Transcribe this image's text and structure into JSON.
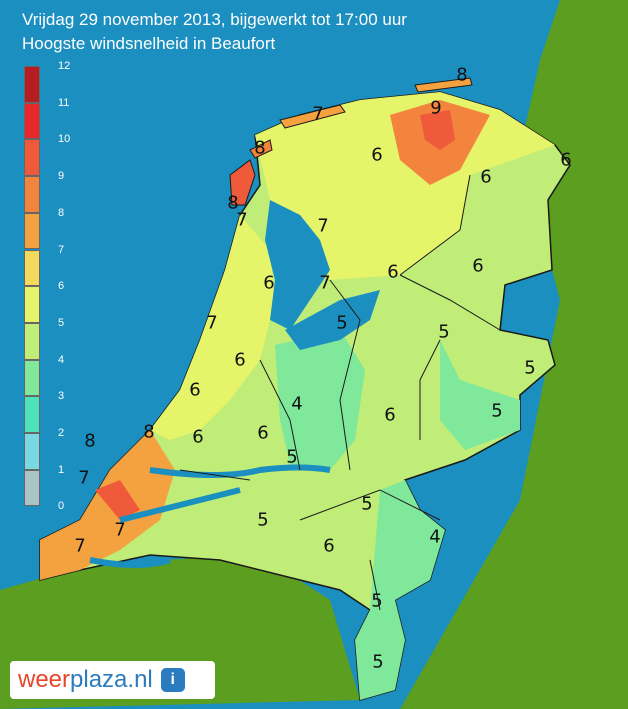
{
  "header": {
    "line1": "Vrijdag 29 november 2013, bijgewerkt tot 17:00 uur",
    "line2": "Hoogste windsnelheid in Beaufort"
  },
  "legend": {
    "ticks": [
      "12",
      "11",
      "10",
      "9",
      "8",
      "7",
      "6",
      "5",
      "4",
      "3",
      "2",
      "1",
      "0"
    ],
    "colors": [
      "#b41e23",
      "#e8272a",
      "#ef5a3b",
      "#f2843d",
      "#f4a23f",
      "#f2d95c",
      "#e6f46a",
      "#bfee78",
      "#7fe89a",
      "#4fe3b9",
      "#7ad8e0",
      "#a9c4c8",
      "#8a8a8a"
    ]
  },
  "colors": {
    "sea": "#1b8fbf",
    "foreign_land": "#5c9e1f",
    "border": "#1a1a1a"
  },
  "map_labels": [
    "8",
    "9",
    "7",
    "8",
    "6",
    "6",
    "8",
    "7",
    "7",
    "6",
    "6",
    "6",
    "7",
    "6",
    "5",
    "7",
    "5",
    "6",
    "6",
    "4",
    "6",
    "5",
    "6",
    "8",
    "6",
    "8",
    "7",
    "5",
    "5",
    "6",
    "7",
    "7",
    "5",
    "4",
    "5",
    "5",
    "5"
  ],
  "logo": {
    "brand_left": "weer",
    "brand_right": "plaza.nl",
    "info": "i"
  }
}
